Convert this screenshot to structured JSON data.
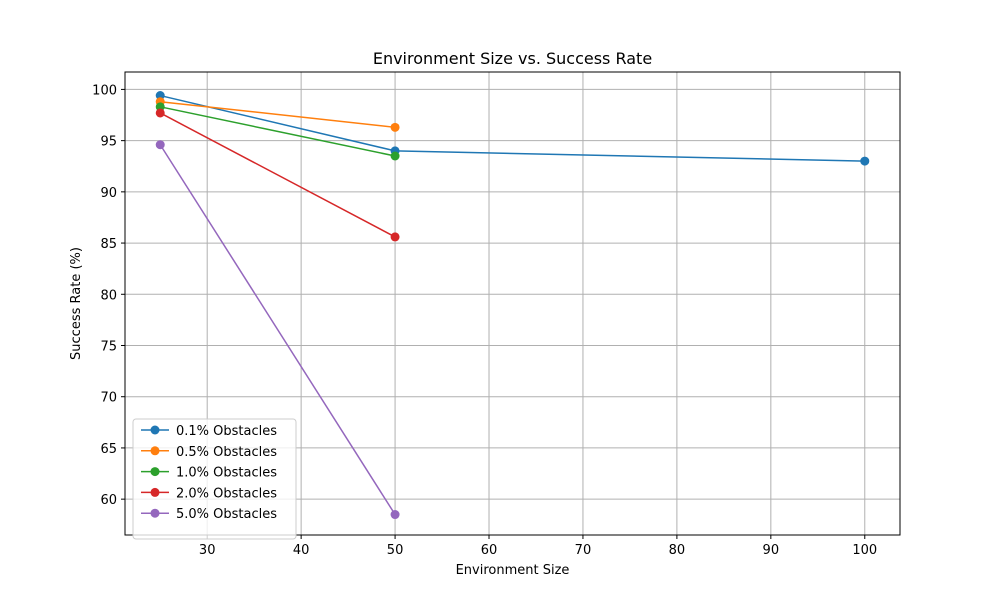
{
  "chart_data": {
    "type": "line",
    "title": "Environment Size vs. Success Rate",
    "xlabel": "Environment Size",
    "ylabel": "Success Rate (%)",
    "xlim": [
      21.25,
      103.75
    ],
    "ylim": [
      56.5,
      101.7
    ],
    "xticks": [
      30,
      40,
      50,
      60,
      70,
      80,
      90,
      100
    ],
    "yticks": [
      60,
      65,
      70,
      75,
      80,
      85,
      90,
      95,
      100
    ],
    "grid": true,
    "legend_position": "lower-left",
    "series": [
      {
        "name": "0.1% Obstacles",
        "color": "#1f77b4",
        "x": [
          25,
          50,
          100
        ],
        "y": [
          99.4,
          94.0,
          93.0
        ]
      },
      {
        "name": "0.5% Obstacles",
        "color": "#ff7f0e",
        "x": [
          25,
          50
        ],
        "y": [
          98.8,
          96.3
        ]
      },
      {
        "name": "1.0% Obstacles",
        "color": "#2ca02c",
        "x": [
          25,
          50
        ],
        "y": [
          98.3,
          93.5
        ]
      },
      {
        "name": "2.0% Obstacles",
        "color": "#d62728",
        "x": [
          25,
          50
        ],
        "y": [
          97.7,
          85.6
        ]
      },
      {
        "name": "5.0% Obstacles",
        "color": "#9467bd",
        "x": [
          25,
          50
        ],
        "y": [
          94.6,
          58.5
        ]
      }
    ]
  }
}
